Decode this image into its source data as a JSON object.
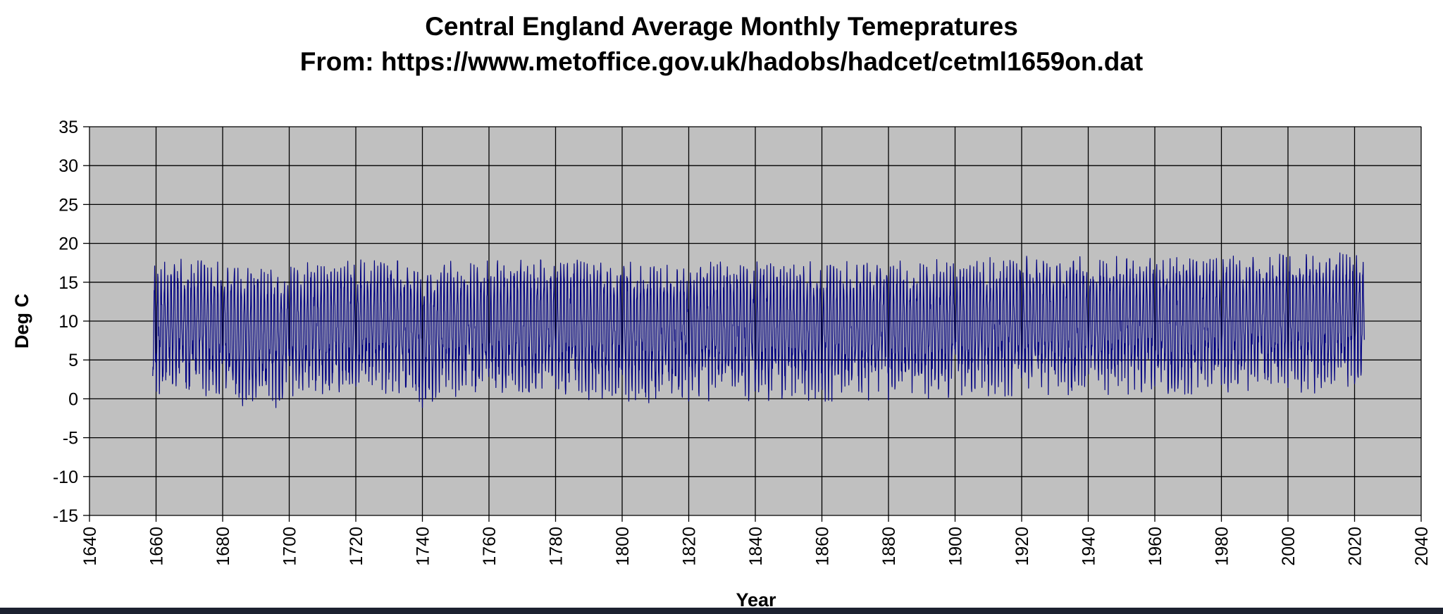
{
  "chart_data": {
    "type": "line",
    "title": "Central England Average Monthly Temepratures",
    "subtitle": "From: https://www.metoffice.gov.uk/hadobs/hadcet/cetml1659on.dat",
    "xlabel": "Year",
    "ylabel": "Deg C",
    "xlim": [
      1640,
      2040
    ],
    "ylim": [
      -15,
      35
    ],
    "x_ticks": [
      1640,
      1660,
      1680,
      1700,
      1720,
      1740,
      1760,
      1780,
      1800,
      1820,
      1840,
      1860,
      1880,
      1900,
      1920,
      1940,
      1960,
      1980,
      2000,
      2020,
      2040
    ],
    "y_ticks": [
      35,
      30,
      25,
      20,
      15,
      10,
      5,
      0,
      -5,
      -10,
      -15
    ],
    "grid": true,
    "legend": "none",
    "series": [
      {
        "color": "#000080",
        "start_year": 1659,
        "end_year": 2022,
        "monthly_pattern": [
          3.3,
          4.0,
          5.7,
          8.1,
          11.2,
          14.2,
          16.0,
          15.8,
          13.6,
          10.2,
          6.5,
          4.2
        ],
        "yearly_anomaly": [
          [
            1659,
            -0.3
          ],
          [
            1664,
            0.2
          ],
          [
            1670,
            0.4
          ],
          [
            1680,
            -0.2
          ],
          [
            1684,
            -1.0
          ],
          [
            1690,
            -0.5
          ],
          [
            1695,
            -1.3
          ],
          [
            1700,
            -0.3
          ],
          [
            1710,
            -0.1
          ],
          [
            1720,
            0.1
          ],
          [
            1730,
            0.3
          ],
          [
            1740,
            -1.2
          ],
          [
            1750,
            0.2
          ],
          [
            1760,
            -0.1
          ],
          [
            1780,
            0.1
          ],
          [
            1800,
            -0.2
          ],
          [
            1816,
            -0.8
          ],
          [
            1820,
            -0.3
          ],
          [
            1840,
            -0.3
          ],
          [
            1860,
            -0.3
          ],
          [
            1880,
            -0.3
          ],
          [
            1900,
            0.0
          ],
          [
            1920,
            0.3
          ],
          [
            1940,
            0.2
          ],
          [
            1960,
            0.3
          ],
          [
            1980,
            0.4
          ],
          [
            2000,
            1.0
          ],
          [
            2010,
            0.7
          ],
          [
            2022,
            1.3
          ]
        ]
      }
    ]
  }
}
